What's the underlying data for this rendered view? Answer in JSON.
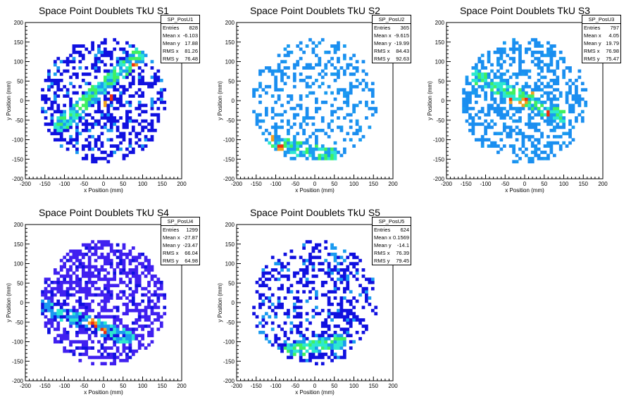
{
  "panels": [
    {
      "title": "Space Point Doublets TkU S1",
      "stats": {
        "name": "SP_PosU1",
        "rows": [
          {
            "label": "Entries",
            "value": "828"
          },
          {
            "label": "Mean x",
            "value": "-6.103"
          },
          {
            "label": "Mean y",
            "value": "17.88"
          },
          {
            "label": "RMS x",
            "value": "81.26"
          },
          {
            "label": "RMS y",
            "value": "76.48"
          }
        ]
      }
    },
    {
      "title": "Space Point Doublets TkU S2",
      "stats": {
        "name": "SP_PosU2",
        "rows": [
          {
            "label": "Entries",
            "value": "365"
          },
          {
            "label": "Mean x",
            "value": "-9.615"
          },
          {
            "label": "Mean y",
            "value": "-19.99"
          },
          {
            "label": "RMS x",
            "value": "84.43"
          },
          {
            "label": "RMS y",
            "value": "92.63"
          }
        ]
      }
    },
    {
      "title": "Space Point Doublets TkU S3",
      "stats": {
        "name": "SP_PosU3",
        "rows": [
          {
            "label": "Entries",
            "value": "797"
          },
          {
            "label": "Mean x",
            "value": "4.05"
          },
          {
            "label": "Mean y",
            "value": "19.79"
          },
          {
            "label": "RMS x",
            "value": "76.98"
          },
          {
            "label": "RMS y",
            "value": "75.47"
          }
        ]
      }
    },
    {
      "title": "Space Point Doublets TkU S4",
      "stats": {
        "name": "SP_PosU4",
        "rows": [
          {
            "label": "Entries",
            "value": "1299"
          },
          {
            "label": "Mean x",
            "value": "-27.87"
          },
          {
            "label": "Mean y",
            "value": "-23.47"
          },
          {
            "label": "RMS x",
            "value": "66.04"
          },
          {
            "label": "RMS y",
            "value": "64.98"
          }
        ]
      }
    },
    {
      "title": "Space Point Doublets TkU S5",
      "stats": {
        "name": "SP_PosU5",
        "rows": [
          {
            "label": "Entries",
            "value": "624"
          },
          {
            "label": "Mean x",
            "value": "0.1569"
          },
          {
            "label": "Mean y",
            "value": "-14.1"
          },
          {
            "label": "RMS x",
            "value": "76.39"
          },
          {
            "label": "RMS y",
            "value": "79.45"
          }
        ]
      }
    }
  ],
  "chart_data": [
    {
      "type": "heatmap",
      "title": "Space Point Doublets TkU S1",
      "xlabel": "x Position (mm)",
      "ylabel": "y Position (mm)",
      "xlim": [
        -200,
        200
      ],
      "ylim": [
        -200,
        200
      ],
      "xticks": [
        -200,
        -150,
        -100,
        -50,
        0,
        50,
        100,
        150,
        200
      ],
      "yticks": [
        -200,
        -150,
        -100,
        -50,
        0,
        50,
        100,
        150,
        200
      ],
      "bin_size": 8,
      "grid": false,
      "band": {
        "from": [
          -110,
          -60
        ],
        "to": [
          150,
          170
        ]
      },
      "seed": 11,
      "fill_fraction": 0.42,
      "palette": [
        "#1010e0",
        "#1a9af0",
        "#2de8d0",
        "#40f060"
      ],
      "hot_points": [
        [
          -20,
          -20
        ],
        [
          0,
          -10
        ],
        [
          20,
          10
        ],
        [
          80,
          90
        ],
        [
          130,
          140
        ]
      ]
    },
    {
      "type": "heatmap",
      "title": "Space Point Doublets TkU S2",
      "xlabel": "x Position (mm)",
      "ylabel": "y Position (mm)",
      "xlim": [
        -200,
        200
      ],
      "ylim": [
        -200,
        200
      ],
      "xticks": [
        -200,
        -150,
        -100,
        -50,
        0,
        50,
        100,
        150,
        200
      ],
      "yticks": [
        -200,
        -150,
        -100,
        -50,
        0,
        50,
        100,
        150,
        200
      ],
      "bin_size": 8,
      "grid": false,
      "band": {
        "from": [
          -100,
          -110
        ],
        "to": [
          40,
          -140
        ]
      },
      "seed": 23,
      "fill_fraction": 0.28,
      "palette": [
        "#1a8ef0",
        "#1a9af0",
        "#2de8d0",
        "#40f060"
      ],
      "hot_points": [
        [
          -85,
          -125
        ],
        [
          -90,
          -120
        ],
        [
          -110,
          -95
        ]
      ]
    },
    {
      "type": "heatmap",
      "title": "Space Point Doublets TkU S3",
      "xlabel": "x Position (mm)",
      "ylabel": "y Position (mm)",
      "xlim": [
        -200,
        200
      ],
      "ylim": [
        -200,
        200
      ],
      "xticks": [
        -200,
        -150,
        -100,
        -50,
        0,
        50,
        100,
        150,
        200
      ],
      "yticks": [
        -200,
        -150,
        -100,
        -50,
        0,
        50,
        100,
        150,
        200
      ],
      "bin_size": 8,
      "grid": false,
      "band": {
        "from": [
          -120,
          60
        ],
        "to": [
          90,
          -40
        ]
      },
      "seed": 37,
      "fill_fraction": 0.42,
      "palette": [
        "#1a8ef0",
        "#1a9af0",
        "#2de8d0",
        "#40f060"
      ],
      "hot_points": [
        [
          -40,
          0
        ],
        [
          0,
          0
        ],
        [
          15,
          20
        ],
        [
          60,
          -30
        ],
        [
          -150,
          -70
        ],
        [
          -120,
          -110
        ],
        [
          -10,
          -5
        ]
      ]
    },
    {
      "type": "heatmap",
      "title": "Space Point Doublets TkU S4",
      "xlabel": "x Position (mm)",
      "ylabel": "y Position (mm)",
      "xlim": [
        -200,
        200
      ],
      "ylim": [
        -200,
        200
      ],
      "xticks": [
        -200,
        -150,
        -100,
        -50,
        0,
        50,
        100,
        150,
        200
      ],
      "yticks": [
        -200,
        -150,
        -100,
        -50,
        0,
        50,
        100,
        150,
        200
      ],
      "bin_size": 8,
      "grid": false,
      "band": {
        "from": [
          -150,
          -10
        ],
        "to": [
          60,
          -90
        ]
      },
      "seed": 53,
      "fill_fraction": 0.5,
      "palette": [
        "#4020f0",
        "#1010e0",
        "#1a9af0",
        "#2de8d0"
      ],
      "hot_points": [
        [
          -30,
          -50
        ],
        [
          -20,
          -55
        ],
        [
          0,
          -70
        ]
      ]
    },
    {
      "type": "heatmap",
      "title": "Space Point Doublets TkU S5",
      "xlabel": "x Position (mm)",
      "ylabel": "y Position (mm)",
      "xlim": [
        -200,
        200
      ],
      "ylim": [
        -200,
        200
      ],
      "xticks": [
        -200,
        -150,
        -100,
        -50,
        0,
        50,
        100,
        150,
        200
      ],
      "yticks": [
        -200,
        -150,
        -100,
        -50,
        0,
        50,
        100,
        150,
        200
      ],
      "bin_size": 8,
      "grid": false,
      "band": {
        "from": [
          -60,
          -120
        ],
        "to": [
          60,
          -100
        ]
      },
      "seed": 71,
      "fill_fraction": 0.36,
      "palette": [
        "#1010e0",
        "#1a9af0",
        "#2de8d0",
        "#40f060"
      ],
      "hot_points": []
    }
  ]
}
